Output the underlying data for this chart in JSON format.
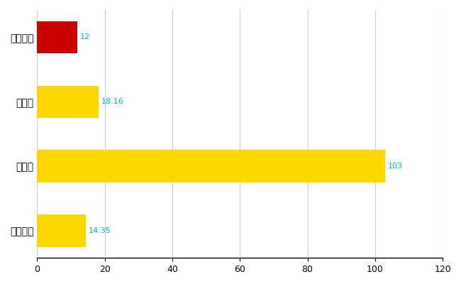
{
  "categories": [
    "全国平均",
    "県最大",
    "県平均",
    "かほく市"
  ],
  "values": [
    14.35,
    103,
    18.16,
    12
  ],
  "bar_colors": [
    "#FFD700",
    "#FFD700",
    "#FFD700",
    "#CC0000"
  ],
  "value_labels": [
    "14.35",
    "103",
    "18.16",
    "12"
  ],
  "value_color": "#00AAFF",
  "xlim": [
    0,
    120
  ],
  "xticks": [
    0,
    20,
    40,
    60,
    80,
    100,
    120
  ],
  "grid_color": "#CCCCCC",
  "bg_color": "#FFFFFF",
  "bar_height": 0.5,
  "figsize": [
    6.5,
    4.0
  ],
  "dpi": 100,
  "label_fontsize": 10,
  "tick_fontsize": 9,
  "value_fontsize": 8
}
